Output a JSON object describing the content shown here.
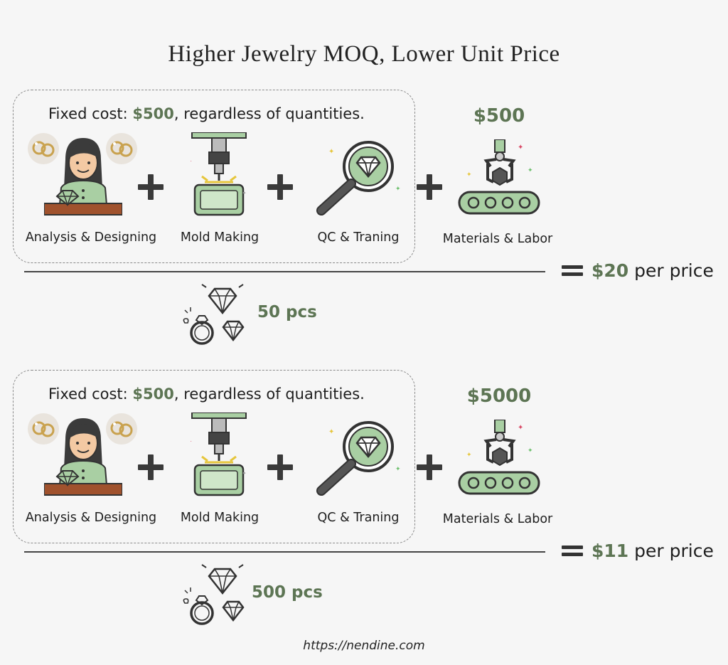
{
  "title": "Higher Jewelry MOQ, Lower Unit Price",
  "scenarios": [
    {
      "fixed_prefix": "Fixed cost: ",
      "fixed_amount": "$500",
      "fixed_suffix": ", regardless of quantities.",
      "steps": [
        "Analysis & Designing",
        "Mold Making",
        "QC & Traning"
      ],
      "materials_label": "Materials & Labor",
      "materials_cost": "$500",
      "unit_price": "$20",
      "unit_suffix": "per price",
      "quantity": "50 pcs"
    },
    {
      "fixed_prefix": "Fixed cost: ",
      "fixed_amount": "$500",
      "fixed_suffix": ", regardless of quantities.",
      "steps": [
        "Analysis & Designing",
        "Mold Making",
        "QC & Traning"
      ],
      "materials_label": "Materials & Labor",
      "materials_cost": "$5000",
      "unit_price": "$11",
      "unit_suffix": "per price",
      "quantity": "500 pcs"
    }
  ],
  "footer_url": "https://nendine.com",
  "icons": [
    "designer-icon",
    "earring-icon",
    "mold-machine-icon",
    "magnifier-diamond-icon",
    "robot-arm-conveyor-icon",
    "diamond-ring-icon",
    "plus-icon",
    "equals-icon"
  ],
  "colors": {
    "accent": "#5d7554",
    "icon_green": "#a9cfa3",
    "background": "#f6f6f6"
  }
}
